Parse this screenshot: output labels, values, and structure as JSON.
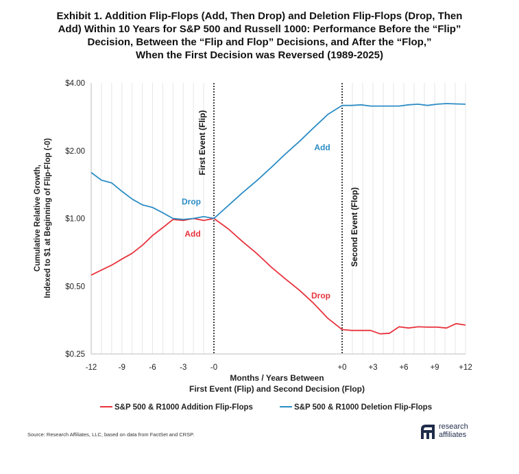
{
  "chart_data": {
    "type": "line",
    "title_lines": [
      "Exhibit 1. Addition Flip-Flops (Add, Then Drop) and Deletion Flip-Flops (Drop, Then",
      "Add) Within 10 Years for S&P 500 and Russell 1000: Performance Before the “Flip”",
      "Decision, Between the “Flip and Flop” Decisions, and After the “Flop,”",
      "When the First Decision was Reversed (1989-2025)"
    ],
    "ylabel_lines": [
      "Cumulative Relative Growth,",
      "Indexed to $1 at Beginning of Flip-Flop (-0)"
    ],
    "xlabel_lines": [
      "Months / Years Between",
      "First Event (Flip) and Second Decision (Flop)"
    ],
    "y_scale": "log2",
    "ylim": [
      0.25,
      4.0
    ],
    "y_ticks": [
      {
        "value": 0.25,
        "label": "$0.25"
      },
      {
        "value": 0.5,
        "label": "$0.50"
      },
      {
        "value": 1.0,
        "label": "$1.00"
      },
      {
        "value": 2.0,
        "label": "$2.00"
      },
      {
        "value": 4.0,
        "label": "$4.00"
      }
    ],
    "grid": "vertical",
    "x_segments": [
      {
        "name": "before",
        "range": [
          -12,
          0
        ],
        "labels": [
          {
            "at": -12,
            "label": "-12"
          },
          {
            "at": -9,
            "label": "-9"
          },
          {
            "at": -6,
            "label": "-6"
          },
          {
            "at": -3,
            "label": "-3"
          },
          {
            "at": 0,
            "label": "-0"
          }
        ]
      },
      {
        "name": "between",
        "range": [
          0,
          1
        ],
        "labels": []
      },
      {
        "name": "after",
        "range": [
          0,
          12
        ],
        "labels": [
          {
            "at": 0,
            "label": "+0"
          },
          {
            "at": 3,
            "label": "+3"
          },
          {
            "at": 6,
            "label": "+6"
          },
          {
            "at": 9,
            "label": "+9"
          },
          {
            "at": 12,
            "label": "+12"
          }
        ]
      }
    ],
    "events": [
      {
        "label": "First Event (Flip)"
      },
      {
        "label": "Second Event (Flop)"
      }
    ],
    "series": [
      {
        "name": "S&P 500 & R1000 Addition Flip-Flops",
        "color": "#e8323c",
        "before": [
          0.56,
          0.59,
          0.62,
          0.66,
          0.7,
          0.76,
          0.84,
          0.91,
          0.99,
          0.98,
          1.0,
          0.98,
          1.0
        ],
        "between": [
          1.0,
          0.9,
          0.79,
          0.7,
          0.61,
          0.54,
          0.48,
          0.42,
          0.36,
          0.321
        ],
        "after": [
          0.321,
          0.318,
          0.318,
          0.318,
          0.307,
          0.309,
          0.33,
          0.326,
          0.33,
          0.329,
          0.329,
          0.326,
          0.341,
          0.336
        ],
        "callouts": [
          {
            "label": "Add",
            "segment": "before"
          },
          {
            "label": "Drop",
            "segment": "between"
          }
        ]
      },
      {
        "name": "S&P 500 & R1000 Deletion Flip-Flops",
        "color": "#2b8cc4",
        "before": [
          1.6,
          1.48,
          1.44,
          1.32,
          1.22,
          1.15,
          1.12,
          1.06,
          1.0,
          0.99,
          1.0,
          1.02,
          1.0
        ],
        "between": [
          1.0,
          1.14,
          1.3,
          1.47,
          1.68,
          1.93,
          2.2,
          2.53,
          2.9,
          3.18
        ],
        "after": [
          3.18,
          3.18,
          3.2,
          3.16,
          3.16,
          3.16,
          3.16,
          3.2,
          3.22,
          3.18,
          3.22,
          3.24,
          3.23,
          3.22
        ],
        "callouts": [
          {
            "label": "Drop",
            "segment": "before"
          },
          {
            "label": "Add",
            "segment": "between"
          }
        ]
      }
    ]
  },
  "footer": {
    "source": "Source: Research Affiliates, LLC, based on data from FactSet and CRSP.",
    "logo_line1": "research",
    "logo_line2": "affiliates",
    "logo_mark": "ra"
  }
}
